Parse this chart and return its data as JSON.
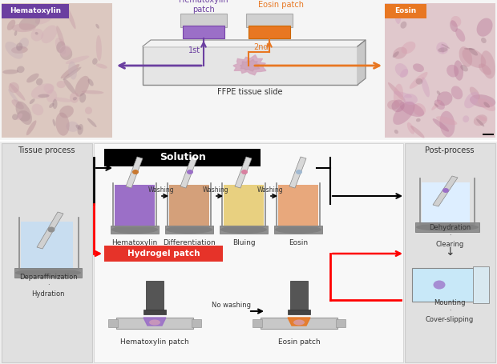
{
  "fig_width": 6.2,
  "fig_height": 4.55,
  "dpi": 100,
  "bg_color": "#ffffff",
  "top_section": {
    "hematoxylin_label": "Hematoxylin",
    "hematoxylin_label_bg": "#6b3fa0",
    "eosin_label": "Eosin",
    "eosin_label_bg": "#e87722",
    "hematoxylin_patch_label": "Hematoxylin\npatch",
    "hematoxylin_patch_color": "#9b6fc7",
    "eosin_patch_label": "Eosin patch",
    "eosin_patch_color": "#e87722",
    "slide_label": "FFPE tissue slide",
    "arrow_1st_color": "#6b3fa0",
    "arrow_2nd_color": "#e87722",
    "label_1st": "1st",
    "label_2nd": "2nd"
  },
  "bottom_section": {
    "tissue_process_label": "Tissue process",
    "post_process_label": "Post-process",
    "deparaffinization_label": "Deparaffinization\n·\nHydration",
    "dehydration_label": "Dehydration\n·\nClearing",
    "mounting_label": "Mounting\n·\nCover-slipping",
    "solution_label": "Solution",
    "hydrogel_label": "Hydrogel patch",
    "solution_steps": [
      "Hematoxylin",
      "Differentiation",
      "Bluing",
      "Eosin"
    ],
    "solution_colors": [
      "#9b6fc7",
      "#d4a07a",
      "#e8d080",
      "#e8a87c"
    ],
    "slide_top_colors": [
      "#c87830",
      "#9b6fc7",
      "#d880a0",
      "#a0b8d0"
    ],
    "washing_label": "Washing",
    "no_washing_label": "No washing",
    "hematoxylin_patch_label": "Hematoxylin patch",
    "eosin_patch_label": "Eosin patch"
  }
}
